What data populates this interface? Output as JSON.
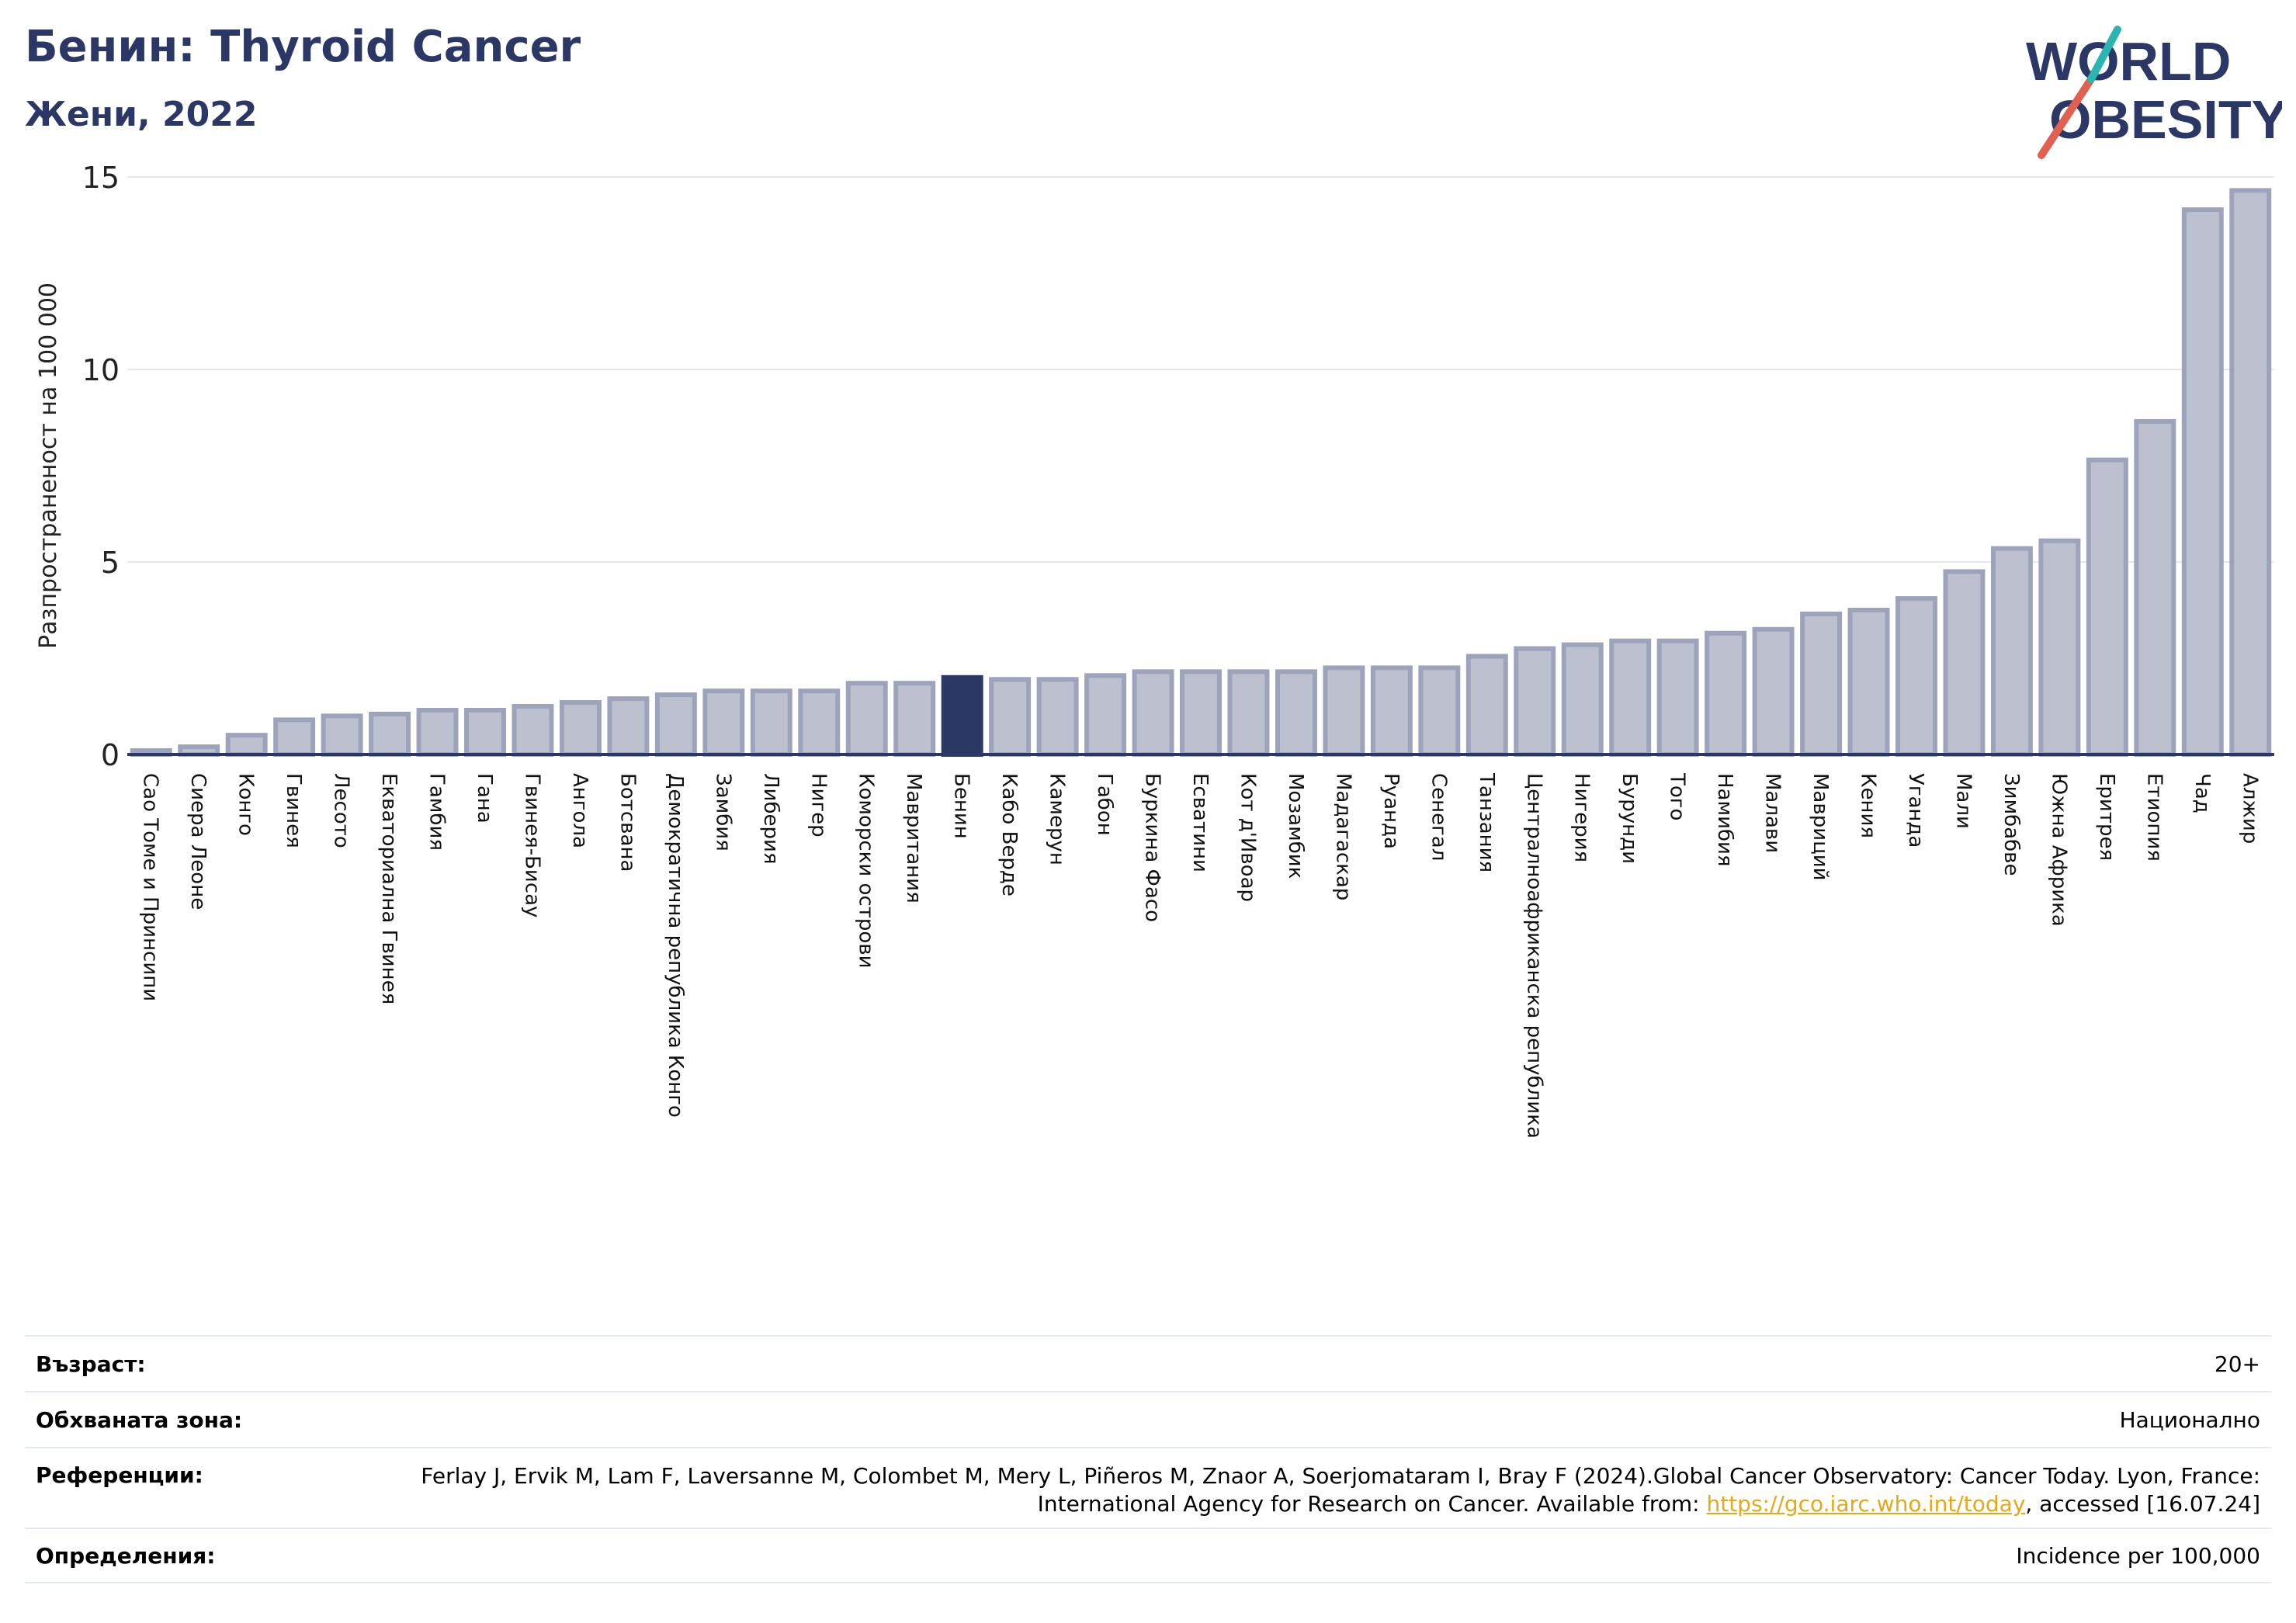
{
  "header": {
    "title": "Бенин: Thyroid Cancer",
    "subtitle": "Жени, 2022"
  },
  "logo": {
    "line1": "WORLD",
    "line2": "OBESITY",
    "text_color": "#2b3765",
    "accent_teal": "#2bb5b1",
    "accent_red": "#e2604f"
  },
  "colors": {
    "bar_fill": "#bcc0cf",
    "bar_stroke": "#9da3ba",
    "highlight": "#2b3765",
    "grid": "#e6e8ef",
    "axis": "#2b3765"
  },
  "chart_data": {
    "type": "bar",
    "ylabel": "Разпространеност  на 100 000",
    "ylim": [
      0,
      15
    ],
    "yticks": [
      0,
      5,
      10,
      15
    ],
    "grid": true,
    "highlight": "Бенин",
    "categories": [
      "Сао Томе и Принсипи",
      "Сиера Леоне",
      "Конго",
      "Гвинея",
      "Лесото",
      "Екваториална Гвинея",
      "Гамбия",
      "Гана",
      "Гвинея-Бисау",
      "Ангола",
      "Ботсвана",
      "Демократична република Конго",
      "Замбия",
      "Либерия",
      "Нигер",
      "Коморски острови",
      "Мавритания",
      "Бенин",
      "Кабо Верде",
      "Камерун",
      "Габон",
      "Буркина Фасо",
      "Есватини",
      "Кот д'Ивоар",
      "Мозамбик",
      "Мадагаскар",
      "Руанда",
      "Сенегал",
      "Танзания",
      "Централноафриканска република",
      "Нигерия",
      "Бурунди",
      "Того",
      "Намибия",
      "Малави",
      "Мавриций",
      "Кения",
      "Уганда",
      "Мали",
      "Зимбабве",
      "Южна Африка",
      "Еритрея",
      "Етиопия",
      "Чад",
      "Алжир"
    ],
    "values": [
      0.1,
      0.2,
      0.5,
      0.9,
      1.0,
      1.05,
      1.15,
      1.15,
      1.25,
      1.35,
      1.45,
      1.55,
      1.65,
      1.65,
      1.65,
      1.85,
      1.85,
      2.0,
      1.95,
      1.95,
      2.05,
      2.15,
      2.15,
      2.15,
      2.15,
      2.25,
      2.25,
      2.25,
      2.55,
      2.75,
      2.85,
      2.95,
      2.95,
      3.15,
      3.25,
      3.65,
      3.75,
      4.05,
      4.75,
      5.35,
      5.55,
      7.65,
      8.65,
      14.15,
      14.65
    ]
  },
  "info": {
    "age_label": "Възраст:",
    "age_value": "20+",
    "coverage_label": "Обхваната зона:",
    "coverage_value": "Национално",
    "references_label": "Референции:",
    "references_text": "Ferlay J, Ervik M, Lam F, Laversanne M, Colombet M, Mery L, Piñeros M, Znaor A, Soerjomataram I, Bray F (2024).Global Cancer Observatory: Cancer Today. Lyon, France: International Agency for Research on Cancer. Available from: ",
    "references_link": "https://gco.iarc.who.int/today",
    "references_suffix": ", accessed [16.07.24]",
    "definitions_label": "Определения:",
    "definitions_value": "Incidence per 100,000"
  }
}
